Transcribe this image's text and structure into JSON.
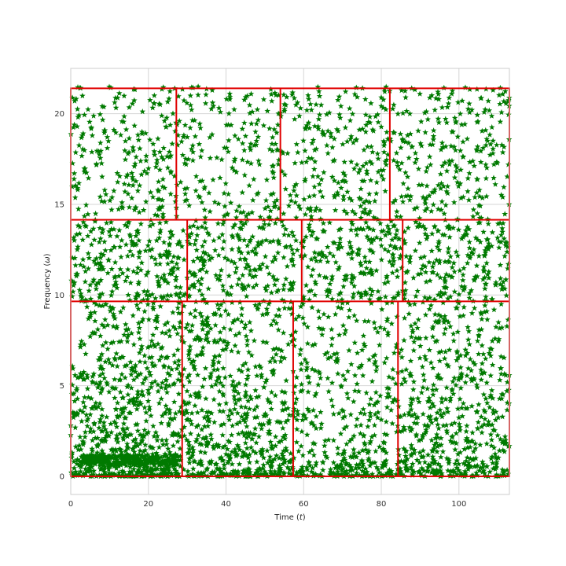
{
  "chart_data": {
    "type": "scatter",
    "title": "",
    "xlabel": "Time (t)",
    "ylabel": "Frequency (ω)",
    "xlabel_parts": {
      "text": "Time (",
      "sym": "t",
      "close": ")"
    },
    "ylabel_parts": {
      "text": "Frequency (",
      "sym": "ω",
      "close": ")"
    },
    "xlim": [
      0,
      113
    ],
    "ylim": [
      -1,
      22.5
    ],
    "xticks": [
      0,
      20,
      40,
      60,
      80,
      100
    ],
    "yticks": [
      0,
      5,
      10,
      15,
      20
    ],
    "grid": true,
    "marker": "star",
    "colors": {
      "points": "#007a00",
      "boxes": "#e00000",
      "grid": "#d6d6d6",
      "frame": "#cccccc"
    },
    "series": [
      {
        "regions": [
          {
            "x": [
              0,
              28
            ],
            "y": [
              0,
              9.5
            ],
            "n": 700,
            "dist": "low-dense"
          },
          {
            "x": [
              28,
              57
            ],
            "y": [
              0,
              9.5
            ],
            "n": 600,
            "dist": "low-dense"
          },
          {
            "x": [
              57,
              84
            ],
            "y": [
              0,
              9.5
            ],
            "n": 400,
            "dist": "low-dense"
          },
          {
            "x": [
              84,
              113
            ],
            "y": [
              0,
              9.5
            ],
            "n": 550,
            "dist": "low-dense"
          },
          {
            "x": [
              2,
              27
            ],
            "y": [
              0.6,
              1.2
            ],
            "n": 260,
            "dist": "band"
          },
          {
            "x": [
              0,
              113
            ],
            "y": [
              9.5,
              14.2
            ],
            "n": 900,
            "dist": "uniform"
          },
          {
            "x": [
              0,
              113
            ],
            "y": [
              14.2,
              21.5
            ],
            "n": 900,
            "dist": "uniform"
          }
        ]
      }
    ],
    "boxes": [
      {
        "t": [
          0,
          113
        ],
        "f": [
          0,
          21.4
        ]
      },
      {
        "t": [
          0,
          113
        ],
        "f": [
          9.65,
          14.15
        ]
      },
      {
        "t": [
          27.2,
          27.2
        ],
        "f": [
          14.15,
          21.4
        ]
      },
      {
        "t": [
          54.0,
          54.0
        ],
        "f": [
          14.15,
          21.4
        ]
      },
      {
        "t": [
          82.2,
          82.2
        ],
        "f": [
          14.15,
          21.4
        ]
      },
      {
        "t": [
          30.0,
          30.0
        ],
        "f": [
          9.65,
          14.15
        ]
      },
      {
        "t": [
          59.5,
          59.5
        ],
        "f": [
          9.65,
          14.15
        ]
      },
      {
        "t": [
          85.5,
          85.5
        ],
        "f": [
          9.65,
          14.15
        ]
      },
      {
        "t": [
          28.7,
          28.7
        ],
        "f": [
          0,
          9.65
        ]
      },
      {
        "t": [
          57.3,
          57.3
        ],
        "f": [
          0,
          9.65
        ]
      },
      {
        "t": [
          84.3,
          84.3
        ],
        "f": [
          0,
          9.65
        ]
      }
    ]
  }
}
